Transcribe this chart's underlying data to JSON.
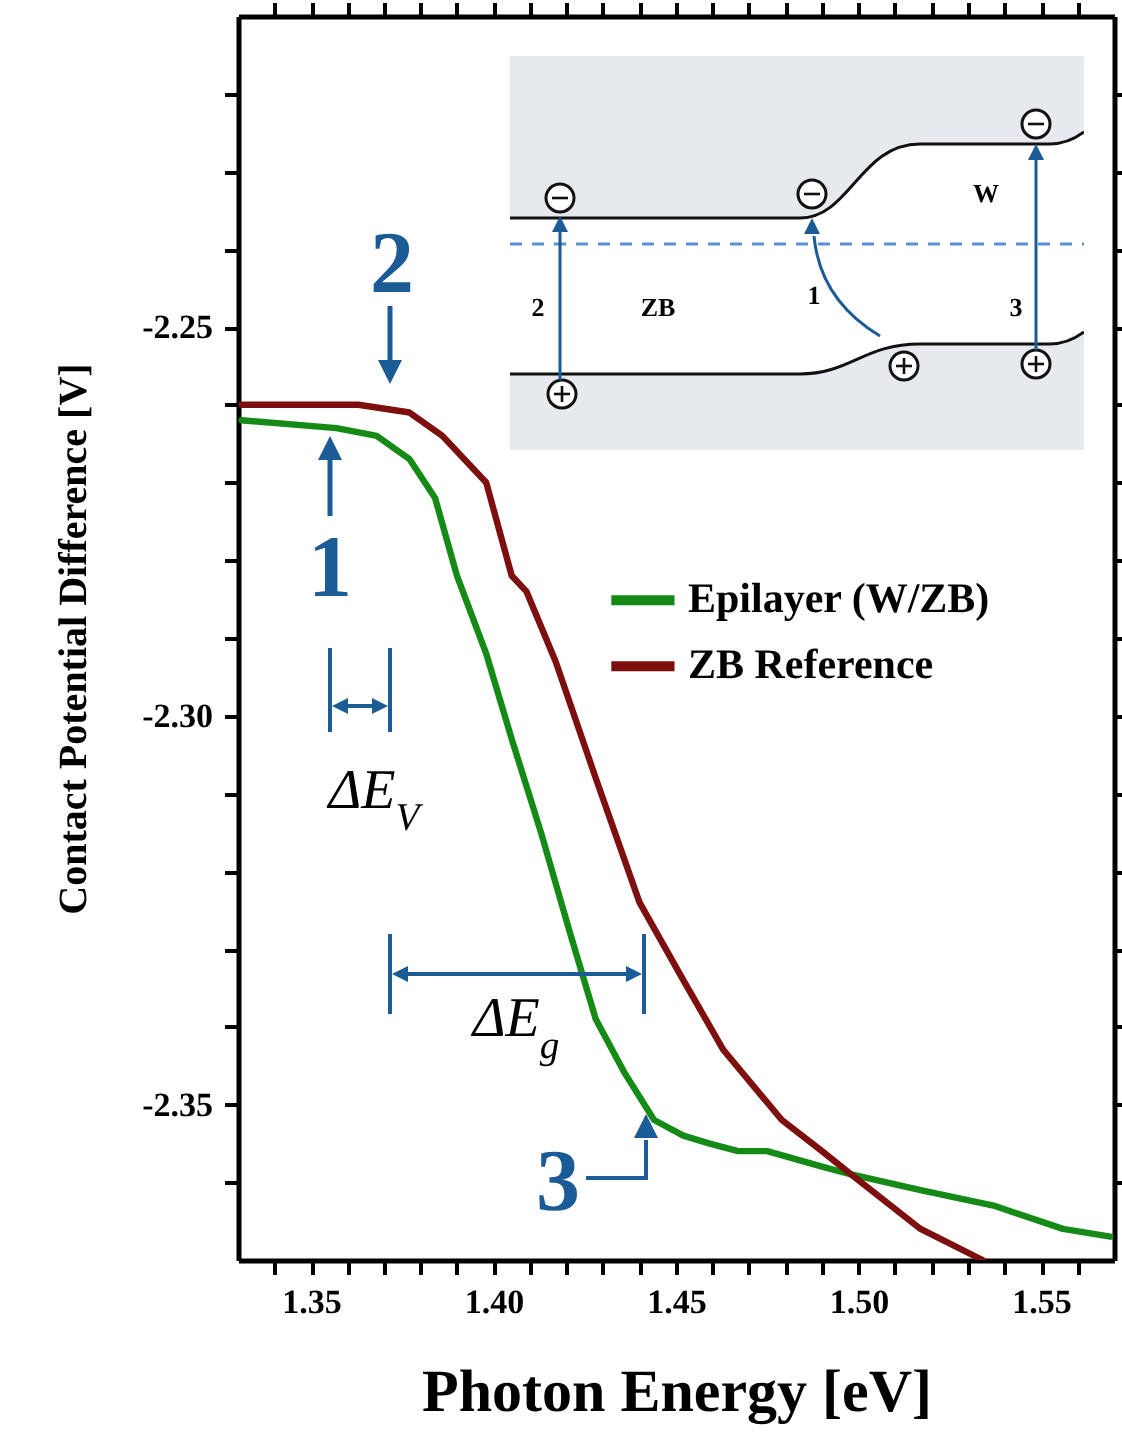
{
  "chart_data": {
    "type": "line",
    "xlabel": "Photon Energy  [eV]",
    "ylabel": "Contact Potential Difference  [V]",
    "xlim": [
      1.33,
      1.57
    ],
    "ylim": [
      -2.37,
      -2.21
    ],
    "xticks": [
      {
        "value": 1.34,
        "label": null
      },
      {
        "value": 1.35,
        "label": "1.35"
      },
      {
        "value": 1.36,
        "label": null
      },
      {
        "value": 1.37,
        "label": null
      },
      {
        "value": 1.38,
        "label": null
      },
      {
        "value": 1.39,
        "label": null
      },
      {
        "value": 1.4,
        "label": "1.40"
      },
      {
        "value": 1.41,
        "label": null
      },
      {
        "value": 1.42,
        "label": null
      },
      {
        "value": 1.43,
        "label": null
      },
      {
        "value": 1.44,
        "label": null
      },
      {
        "value": 1.45,
        "label": "1.45"
      },
      {
        "value": 1.46,
        "label": null
      },
      {
        "value": 1.47,
        "label": null
      },
      {
        "value": 1.48,
        "label": null
      },
      {
        "value": 1.49,
        "label": null
      },
      {
        "value": 1.5,
        "label": "1.50"
      },
      {
        "value": 1.51,
        "label": null
      },
      {
        "value": 1.52,
        "label": null
      },
      {
        "value": 1.53,
        "label": null
      },
      {
        "value": 1.54,
        "label": null
      },
      {
        "value": 1.55,
        "label": "1.55"
      },
      {
        "value": 1.56,
        "label": null
      }
    ],
    "yticks": [
      {
        "value": -2.36,
        "label": null
      },
      {
        "value": -2.35,
        "label": "-2.35"
      },
      {
        "value": -2.34,
        "label": null
      },
      {
        "value": -2.33,
        "label": null
      },
      {
        "value": -2.32,
        "label": null
      },
      {
        "value": -2.31,
        "label": null
      },
      {
        "value": -2.3,
        "label": "-2.30"
      },
      {
        "value": -2.29,
        "label": null
      },
      {
        "value": -2.28,
        "label": null
      },
      {
        "value": -2.27,
        "label": null
      },
      {
        "value": -2.26,
        "label": null
      },
      {
        "value": -2.25,
        "label": "-2.25"
      },
      {
        "value": -2.24,
        "label": null
      },
      {
        "value": -2.23,
        "label": null
      },
      {
        "value": -2.22,
        "label": null
      }
    ],
    "legend": "right",
    "series": [
      {
        "name": "Epilayer (W/ZB)",
        "color": "#168a16",
        "x": [
          1.331,
          1.357,
          1.368,
          1.377,
          1.384,
          1.39,
          1.398,
          1.405,
          1.413,
          1.421,
          1.428,
          1.436,
          1.444,
          1.452,
          1.459,
          1.467,
          1.475,
          1.49,
          1.498,
          1.517,
          1.537,
          1.556,
          1.569
        ],
        "values": [
          -2.262,
          -2.263,
          -2.264,
          -2.267,
          -2.272,
          -2.282,
          -2.292,
          -2.303,
          -2.315,
          -2.328,
          -2.339,
          -2.346,
          -2.352,
          -2.354,
          -2.355,
          -2.356,
          -2.356,
          -2.358,
          -2.359,
          -2.361,
          -2.363,
          -2.366,
          -2.367
        ]
      },
      {
        "name": "ZB Reference",
        "color": "#7d0f0f",
        "x": [
          1.331,
          1.363,
          1.377,
          1.386,
          1.398,
          1.405,
          1.409,
          1.417,
          1.428,
          1.44,
          1.452,
          1.463,
          1.479,
          1.49,
          1.498,
          1.517,
          1.534
        ],
        "values": [
          -2.26,
          -2.26,
          -2.261,
          -2.264,
          -2.27,
          -2.282,
          -2.284,
          -2.293,
          -2.308,
          -2.324,
          -2.334,
          -2.343,
          -2.352,
          -2.356,
          -2.359,
          -2.366,
          -2.37
        ]
      }
    ],
    "annotations": [
      "1",
      "2",
      "3",
      "ΔE$_{V}$",
      "ΔE$_{g}$",
      "2",
      "ZB",
      "1",
      "W",
      "3"
    ]
  }
}
